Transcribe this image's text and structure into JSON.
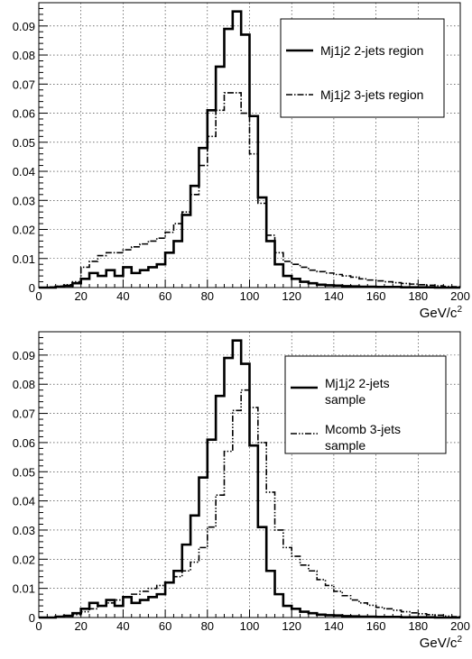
{
  "chart_data": [
    {
      "type": "line",
      "step": true,
      "title": "",
      "xlabel": "GeV/c",
      "xlabel_sup": "2",
      "ylabel": "",
      "xlim": [
        0,
        200
      ],
      "ylim": [
        0,
        0.098
      ],
      "xticks": [
        0,
        20,
        40,
        60,
        80,
        100,
        120,
        140,
        160,
        180,
        200
      ],
      "yticks": [
        0,
        0.01,
        0.02,
        0.03,
        0.04,
        0.05,
        0.06,
        0.07,
        0.08,
        0.09
      ],
      "ytick_labels": [
        "0",
        "0.01",
        "0.02",
        "0.03",
        "0.04",
        "0.05",
        "0.06",
        "0.07",
        "0.08",
        "0.09"
      ],
      "grid": true,
      "legend_position": "top-right",
      "bin_edges": [
        0,
        4,
        8,
        12,
        16,
        20,
        24,
        28,
        32,
        36,
        40,
        44,
        48,
        52,
        56,
        60,
        64,
        68,
        72,
        76,
        80,
        84,
        88,
        92,
        96,
        100,
        104,
        108,
        112,
        116,
        120,
        124,
        128,
        132,
        136,
        140,
        144,
        148,
        152,
        156,
        160,
        164,
        168,
        172,
        176,
        180,
        184,
        188,
        192,
        196,
        200
      ],
      "series": [
        {
          "name": "Mj1j2 2-jets region",
          "style": "solid",
          "values": [
            0.0,
            0.0,
            0.0003,
            0.0006,
            0.0015,
            0.003,
            0.005,
            0.004,
            0.006,
            0.004,
            0.007,
            0.005,
            0.006,
            0.007,
            0.008,
            0.012,
            0.016,
            0.025,
            0.035,
            0.048,
            0.061,
            0.076,
            0.089,
            0.095,
            0.087,
            0.059,
            0.031,
            0.016,
            0.008,
            0.004,
            0.003,
            0.002,
            0.0015,
            0.001,
            0.0008,
            0.0007,
            0.0005,
            0.0004,
            0.0003,
            0.0003,
            0.0002,
            0.0002,
            0.0002,
            0.0001,
            0.0001,
            0.0001,
            0.0001,
            0.0,
            0.0,
            0.0
          ]
        },
        {
          "name": "Mj1j2 3-jets region",
          "style": "dash-dot",
          "values": [
            0.0,
            0.0002,
            0.0005,
            0.001,
            0.002,
            0.007,
            0.009,
            0.011,
            0.012,
            0.012,
            0.013,
            0.014,
            0.015,
            0.016,
            0.017,
            0.019,
            0.022,
            0.026,
            0.032,
            0.042,
            0.052,
            0.061,
            0.067,
            0.067,
            0.06,
            0.046,
            0.029,
            0.018,
            0.012,
            0.009,
            0.008,
            0.007,
            0.006,
            0.0055,
            0.005,
            0.0045,
            0.004,
            0.0036,
            0.003,
            0.0026,
            0.0023,
            0.002,
            0.0017,
            0.0014,
            0.0012,
            0.001,
            0.0008,
            0.0006,
            0.0004,
            0.0003
          ]
        }
      ]
    },
    {
      "type": "line",
      "step": true,
      "title": "",
      "xlabel": "GeV/c",
      "xlabel_sup": "2",
      "ylabel": "",
      "xlim": [
        0,
        200
      ],
      "ylim": [
        0,
        0.098
      ],
      "xticks": [
        0,
        20,
        40,
        60,
        80,
        100,
        120,
        140,
        160,
        180,
        200
      ],
      "yticks": [
        0,
        0.01,
        0.02,
        0.03,
        0.04,
        0.05,
        0.06,
        0.07,
        0.08,
        0.09
      ],
      "ytick_labels": [
        "0",
        "0.01",
        "0.02",
        "0.03",
        "0.04",
        "0.05",
        "0.06",
        "0.07",
        "0.08",
        "0.09"
      ],
      "grid": true,
      "legend_position": "top-right",
      "bin_edges": [
        0,
        4,
        8,
        12,
        16,
        20,
        24,
        28,
        32,
        36,
        40,
        44,
        48,
        52,
        56,
        60,
        64,
        68,
        72,
        76,
        80,
        84,
        88,
        92,
        96,
        100,
        104,
        108,
        112,
        116,
        120,
        124,
        128,
        132,
        136,
        140,
        144,
        148,
        152,
        156,
        160,
        164,
        168,
        172,
        176,
        180,
        184,
        188,
        192,
        196,
        200
      ],
      "series": [
        {
          "name": "Mj1j2 2-jets sample",
          "legend_lines": [
            "Mj1j2 2-jets",
            "sample"
          ],
          "style": "solid",
          "values": [
            0.0,
            0.0,
            0.0003,
            0.0006,
            0.0015,
            0.003,
            0.005,
            0.004,
            0.006,
            0.004,
            0.007,
            0.005,
            0.006,
            0.007,
            0.008,
            0.012,
            0.016,
            0.025,
            0.035,
            0.048,
            0.061,
            0.076,
            0.089,
            0.095,
            0.087,
            0.059,
            0.031,
            0.016,
            0.008,
            0.004,
            0.003,
            0.002,
            0.0015,
            0.001,
            0.0008,
            0.0007,
            0.0005,
            0.0004,
            0.0003,
            0.0003,
            0.0002,
            0.0002,
            0.0002,
            0.0001,
            0.0001,
            0.0001,
            0.0001,
            0.0,
            0.0,
            0.0
          ]
        },
        {
          "name": "Mcomb 3-jets sample",
          "legend_lines": [
            "Mcomb 3-jets",
            "sample"
          ],
          "style": "dash-dot-dot",
          "values": [
            0.0,
            0.0,
            0.0002,
            0.0005,
            0.001,
            0.002,
            0.003,
            0.004,
            0.005,
            0.006,
            0.007,
            0.008,
            0.009,
            0.01,
            0.011,
            0.012,
            0.014,
            0.016,
            0.019,
            0.024,
            0.031,
            0.042,
            0.057,
            0.071,
            0.078,
            0.072,
            0.06,
            0.043,
            0.03,
            0.024,
            0.021,
            0.018,
            0.016,
            0.013,
            0.011,
            0.009,
            0.0075,
            0.006,
            0.005,
            0.0042,
            0.0035,
            0.003,
            0.0025,
            0.002,
            0.0016,
            0.0013,
            0.001,
            0.0008,
            0.0005,
            0.0003
          ]
        }
      ]
    }
  ]
}
